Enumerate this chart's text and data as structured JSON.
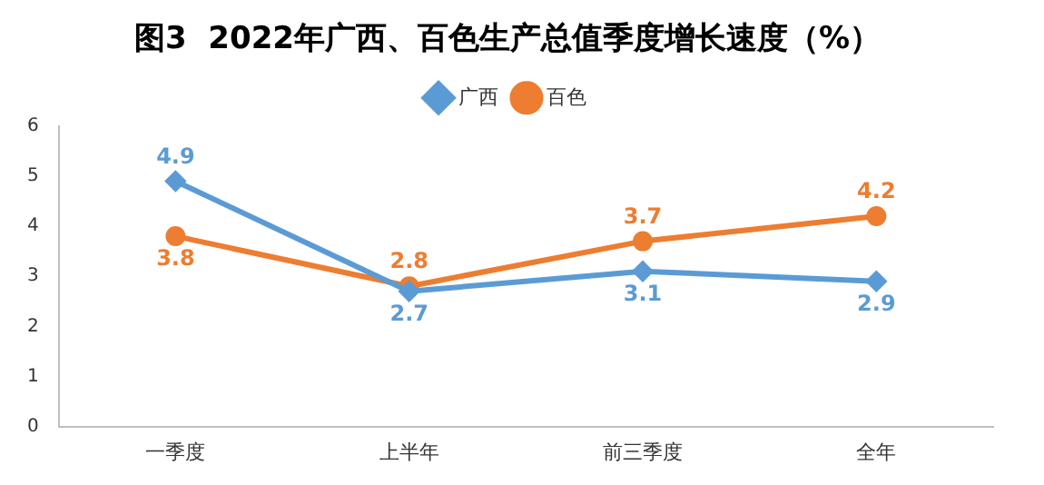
{
  "chart_data": {
    "type": "line",
    "title": "图3  2022年广西、百色生产总值季度增长速度（%）",
    "categories": [
      "一季度",
      "上半年",
      "前三季度",
      "全年"
    ],
    "series": [
      {
        "name": "广西",
        "color": "#5b9bd5",
        "marker": "diamond",
        "values": [
          4.9,
          2.7,
          3.1,
          2.9
        ]
      },
      {
        "name": "百色",
        "color": "#ed7d31",
        "marker": "circle",
        "values": [
          3.8,
          2.8,
          3.7,
          4.2
        ]
      }
    ],
    "ylim": [
      0,
      6
    ],
    "yticks": [
      0,
      1,
      2,
      3,
      4,
      5,
      6
    ],
    "grid": false,
    "legend": "top",
    "data_labels": true
  }
}
